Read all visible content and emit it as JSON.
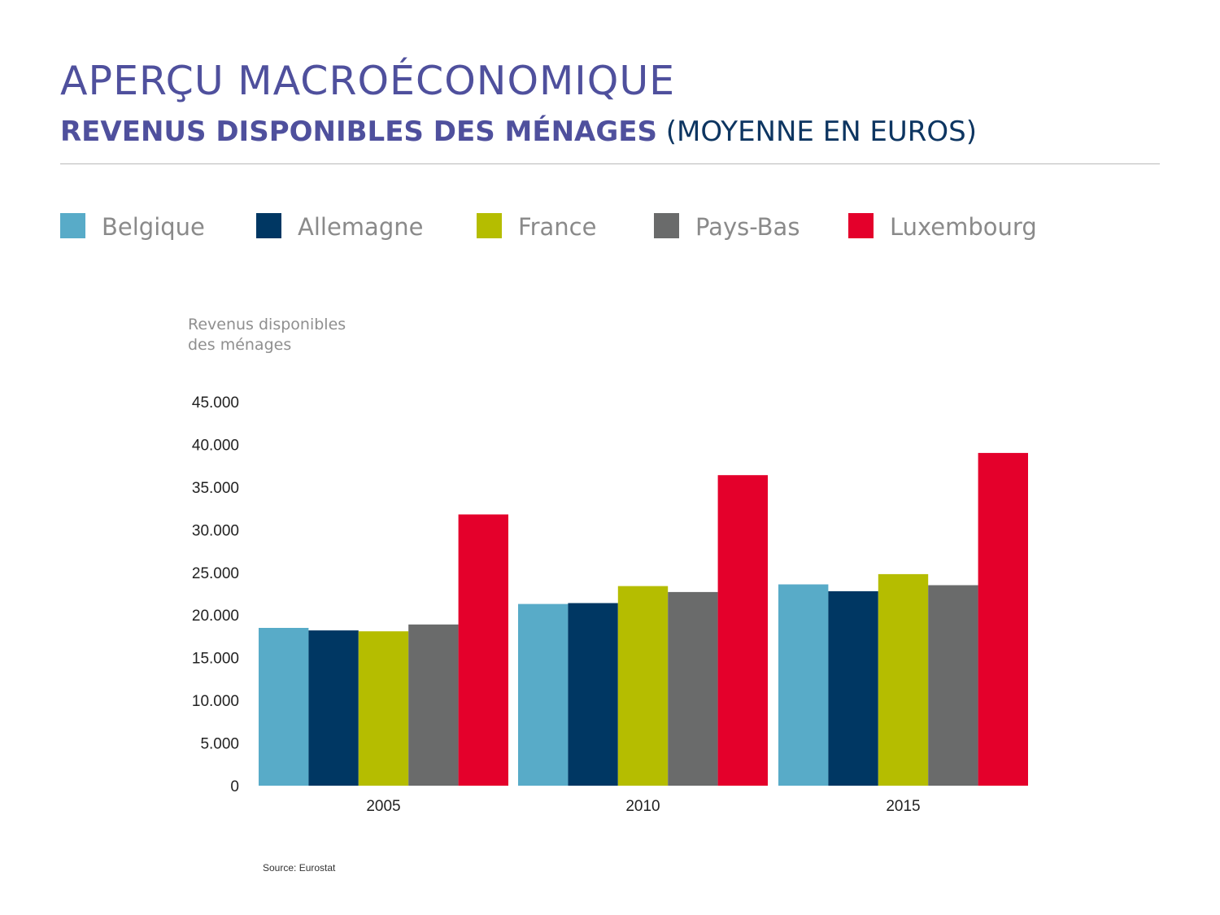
{
  "heading": {
    "title": "APERÇU MACROÉCONOMIQUE",
    "subtitle_bold": "REVENUS DISPONIBLES DES MÉNAGES",
    "subtitle_rest": "(MOYENNE EN EUROS)"
  },
  "legend": [
    {
      "label": "Belgique",
      "color": "#58abc8"
    },
    {
      "label": "Allemagne",
      "color": "#003763"
    },
    {
      "label": "France",
      "color": "#b5bd00"
    },
    {
      "label": "Pays-Bas",
      "color": "#6a6b6b"
    },
    {
      "label": "Luxembourg",
      "color": "#e4002b"
    }
  ],
  "chart_data": {
    "type": "bar",
    "ylabel_lines": [
      "Revenus disponibles",
      "des ménages"
    ],
    "categories": [
      "2005",
      "2010",
      "2015"
    ],
    "y_ticks": [
      0,
      5000,
      10000,
      15000,
      20000,
      25000,
      30000,
      35000,
      40000,
      45000
    ],
    "y_tick_labels": [
      "0",
      "5.000",
      "10.000",
      "15.000",
      "20.000",
      "25.000",
      "30.000",
      "35.000",
      "40.000",
      "45.000"
    ],
    "ylim": [
      0,
      45000
    ],
    "grid": false,
    "legend_position": "top",
    "series": [
      {
        "name": "Belgique",
        "color": "#58abc8",
        "values": [
          18500,
          21300,
          23600
        ]
      },
      {
        "name": "Allemagne",
        "color": "#003763",
        "values": [
          18200,
          21400,
          22800
        ]
      },
      {
        "name": "France",
        "color": "#b5bd00",
        "values": [
          18100,
          23400,
          24800
        ]
      },
      {
        "name": "Pays-Bas",
        "color": "#6a6b6b",
        "values": [
          18900,
          22700,
          23500
        ]
      },
      {
        "name": "Luxembourg",
        "color": "#e4002b",
        "values": [
          31800,
          36400,
          39000
        ]
      }
    ],
    "source": "Source: Eurostat"
  }
}
